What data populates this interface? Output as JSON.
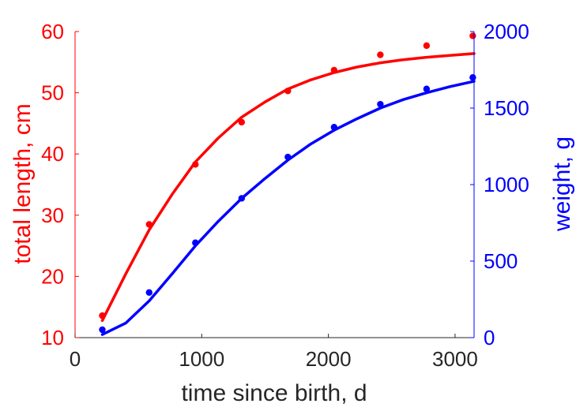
{
  "chart_data": {
    "type": "line",
    "title": "",
    "xlabel": "time since birth, d",
    "ylabel": "total length, cm",
    "y2label": "weight, g",
    "xlim": [
      0,
      3150
    ],
    "ylim": [
      10,
      60
    ],
    "y2lim": [
      0,
      2000
    ],
    "xticks": [
      0,
      1000,
      2000,
      3000
    ],
    "yticks": [
      10,
      20,
      30,
      40,
      50,
      60
    ],
    "y2ticks": [
      0,
      500,
      1000,
      1500,
      2000
    ],
    "grid": false,
    "legend": "none",
    "colors": {
      "left": "#ff0000",
      "right": "#0000ff",
      "axis_x": "#262626"
    },
    "series": [
      {
        "axis": "left",
        "kind": "data",
        "color": "#ff0000",
        "points": [
          [
            215,
            13.6
          ],
          [
            585,
            28.5
          ],
          [
            950,
            38.3
          ],
          [
            1315,
            45.2
          ],
          [
            1680,
            50.3
          ],
          [
            2045,
            53.7
          ],
          [
            2410,
            56.2
          ],
          [
            2775,
            57.7
          ],
          [
            3140,
            59.3
          ]
        ]
      },
      {
        "axis": "left",
        "kind": "fit",
        "color": "#ff0000",
        "points": [
          [
            215,
            12.8
          ],
          [
            400,
            20.4
          ],
          [
            585,
            27.6
          ],
          [
            770,
            33.5
          ],
          [
            950,
            38.7
          ],
          [
            1130,
            42.6
          ],
          [
            1315,
            46.0
          ],
          [
            1500,
            48.5
          ],
          [
            1680,
            50.6
          ],
          [
            1860,
            52.1
          ],
          [
            2045,
            53.3
          ],
          [
            2225,
            54.2
          ],
          [
            2410,
            54.9
          ],
          [
            2590,
            55.4
          ],
          [
            2775,
            55.8
          ],
          [
            2960,
            56.1
          ],
          [
            3150,
            56.4
          ]
        ]
      },
      {
        "axis": "right",
        "kind": "data",
        "color": "#0000ff",
        "points": [
          [
            215,
            52
          ],
          [
            585,
            295
          ],
          [
            950,
            620
          ],
          [
            1315,
            910
          ],
          [
            1680,
            1180
          ],
          [
            2045,
            1375
          ],
          [
            2410,
            1525
          ],
          [
            2775,
            1625
          ],
          [
            3140,
            1700
          ]
        ]
      },
      {
        "axis": "right",
        "kind": "fit",
        "color": "#0000ff",
        "points": [
          [
            215,
            20
          ],
          [
            400,
            95
          ],
          [
            585,
            240
          ],
          [
            770,
            420
          ],
          [
            950,
            600
          ],
          [
            1130,
            760
          ],
          [
            1315,
            910
          ],
          [
            1500,
            1040
          ],
          [
            1680,
            1160
          ],
          [
            1860,
            1265
          ],
          [
            2045,
            1355
          ],
          [
            2225,
            1430
          ],
          [
            2410,
            1500
          ],
          [
            2590,
            1555
          ],
          [
            2775,
            1600
          ],
          [
            2960,
            1640
          ],
          [
            3150,
            1675
          ]
        ]
      }
    ]
  }
}
